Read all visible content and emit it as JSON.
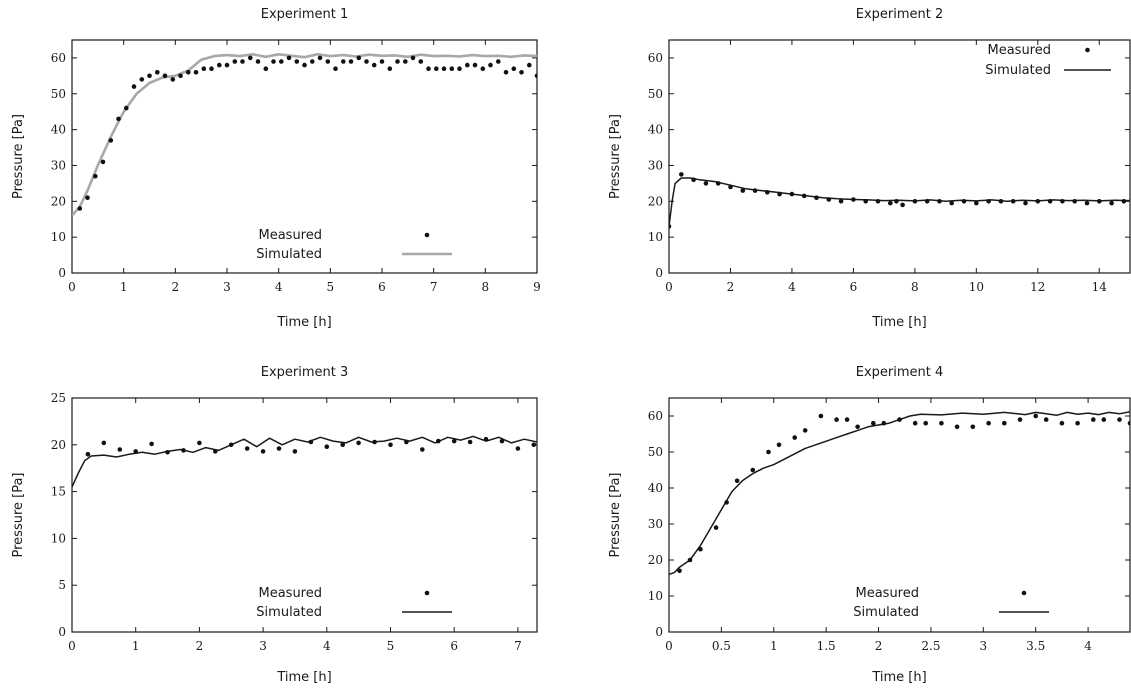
{
  "chart_data": [
    {
      "type": "scatter",
      "title": "Experiment 1",
      "xlabel": "Time [h]",
      "ylabel": "Pressure [Pa]",
      "xlim": [
        0,
        9
      ],
      "ylim": [
        0,
        65
      ],
      "xticks": [
        "0",
        "1",
        "2",
        "3",
        "4",
        "5",
        "6",
        "7",
        "8",
        "9"
      ],
      "yticks": [
        "0",
        "10",
        "20",
        "30",
        "40",
        "50",
        "60"
      ],
      "legend_position": "bottom-center",
      "simulated_color": "#a8a8a8",
      "series": [
        {
          "name": "Measured",
          "mode": "markers",
          "x": [
            0.15,
            0.3,
            0.45,
            0.6,
            0.75,
            0.9,
            1.05,
            1.2,
            1.35,
            1.5,
            1.65,
            1.8,
            1.95,
            2.1,
            2.25,
            2.4,
            2.55,
            2.7,
            2.85,
            3.0,
            3.15,
            3.3,
            3.45,
            3.6,
            3.75,
            3.9,
            4.05,
            4.2,
            4.35,
            4.5,
            4.65,
            4.8,
            4.95,
            5.1,
            5.25,
            5.4,
            5.55,
            5.7,
            5.85,
            6.0,
            6.15,
            6.3,
            6.45,
            6.6,
            6.75,
            6.9,
            7.05,
            7.2,
            7.35,
            7.5,
            7.65,
            7.8,
            7.95,
            8.1,
            8.25,
            8.4,
            8.55,
            8.7,
            8.85,
            9.0
          ],
          "y": [
            18,
            21,
            27,
            31,
            37,
            43,
            46,
            52,
            54,
            55,
            56,
            55,
            54,
            55,
            56,
            56,
            57,
            57,
            58,
            58,
            59,
            59,
            60,
            59,
            57,
            59,
            59,
            60,
            59,
            58,
            59,
            60,
            59,
            57,
            59,
            59,
            60,
            59,
            58,
            59,
            57,
            59,
            59,
            60,
            59,
            57,
            57,
            57,
            57,
            57,
            58,
            58,
            57,
            58,
            59,
            56,
            57,
            56,
            58,
            55
          ]
        },
        {
          "name": "Simulated",
          "mode": "line",
          "x": [
            0,
            0.15,
            0.3,
            0.5,
            0.75,
            1.0,
            1.25,
            1.5,
            1.75,
            2.0,
            2.25,
            2.5,
            2.75,
            3.0,
            3.25,
            3.5,
            3.75,
            4.0,
            4.25,
            4.5,
            4.75,
            5.0,
            5.25,
            5.5,
            5.75,
            6.0,
            6.25,
            6.5,
            6.75,
            7.0,
            7.25,
            7.5,
            7.75,
            8.0,
            8.25,
            8.5,
            8.75,
            9.0
          ],
          "y": [
            16,
            18.5,
            23,
            30,
            38,
            45,
            50,
            53,
            54.5,
            55,
            56.5,
            59.5,
            60.5,
            60.8,
            60.5,
            61,
            60.3,
            61,
            60.6,
            60.2,
            61,
            60.5,
            60.8,
            60.4,
            60.9,
            60.6,
            60.7,
            60.3,
            60.9,
            60.5,
            60.6,
            60.4,
            60.8,
            60.5,
            60.6,
            60.3,
            60.7,
            60.5
          ]
        }
      ]
    },
    {
      "type": "scatter",
      "title": "Experiment 2",
      "xlabel": "Time [h]",
      "ylabel": "Pressure [Pa]",
      "xlim": [
        0,
        15
      ],
      "ylim": [
        0,
        65
      ],
      "xticks": [
        "0",
        "2",
        "4",
        "6",
        "8",
        "10",
        "12",
        "14"
      ],
      "yticks": [
        "0",
        "10",
        "20",
        "30",
        "40",
        "50",
        "60"
      ],
      "legend_position": "top-right",
      "simulated_color": "#1a1a1a",
      "series": [
        {
          "name": "Measured",
          "mode": "markers",
          "x": [
            0,
            0.4,
            0.8,
            1.2,
            1.6,
            2.0,
            2.4,
            2.8,
            3.2,
            3.6,
            4.0,
            4.4,
            4.8,
            5.2,
            5.6,
            6.0,
            6.4,
            6.8,
            7.2,
            7.4,
            7.6,
            8.0,
            8.4,
            8.8,
            9.2,
            9.6,
            10.0,
            10.4,
            10.8,
            11.2,
            11.6,
            12.0,
            12.4,
            12.8,
            13.2,
            13.6,
            14.0,
            14.4,
            14.8
          ],
          "y": [
            13,
            27.5,
            26,
            25,
            25,
            24,
            23,
            23,
            22.5,
            22,
            22,
            21.5,
            21,
            20.5,
            20,
            20.5,
            20,
            20,
            19.5,
            20,
            19,
            20,
            20,
            20,
            19.5,
            20,
            19.5,
            20,
            20,
            20,
            19.5,
            20,
            20,
            20,
            20,
            19.5,
            20,
            19.5,
            20
          ]
        },
        {
          "name": "Simulated",
          "mode": "line",
          "x": [
            0,
            0.1,
            0.2,
            0.4,
            0.7,
            1.0,
            1.5,
            2,
            2.5,
            3,
            3.5,
            4,
            4.5,
            5,
            5.5,
            6,
            6.5,
            7,
            7.5,
            8,
            8.5,
            9,
            9.5,
            10,
            10.5,
            11,
            11.5,
            12,
            12.5,
            13,
            13.5,
            14,
            14.5,
            15
          ],
          "y": [
            13,
            20,
            25,
            26.5,
            26.5,
            26,
            25.5,
            24.5,
            23.5,
            23,
            22.5,
            22,
            21.5,
            21,
            20.7,
            20.5,
            20.4,
            20.2,
            20.3,
            20.1,
            20.4,
            20,
            20.3,
            20.1,
            20.4,
            20,
            20.3,
            20.1,
            20.4,
            20.2,
            20.3,
            20.1,
            20.3,
            20.2
          ]
        }
      ]
    },
    {
      "type": "scatter",
      "title": "Experiment 3",
      "xlabel": "Time [h]",
      "ylabel": "Pressure [Pa]",
      "xlim": [
        0,
        7.3
      ],
      "ylim": [
        0,
        25
      ],
      "xticks": [
        "0",
        "1",
        "2",
        "3",
        "4",
        "5",
        "6",
        "7"
      ],
      "yticks": [
        "0",
        "5",
        "10",
        "15",
        "20",
        "25"
      ],
      "legend_position": "bottom-center",
      "simulated_color": "#1a1a1a",
      "series": [
        {
          "name": "Measured",
          "mode": "markers",
          "x": [
            0.25,
            0.5,
            0.75,
            1.0,
            1.25,
            1.5,
            1.75,
            2.0,
            2.25,
            2.5,
            2.75,
            3.0,
            3.25,
            3.5,
            3.75,
            4.0,
            4.25,
            4.5,
            4.75,
            5.0,
            5.25,
            5.5,
            5.75,
            6.0,
            6.25,
            6.5,
            6.75,
            7.0,
            7.25
          ],
          "y": [
            19,
            20.2,
            19.5,
            19.3,
            20.1,
            19.2,
            19.4,
            20.2,
            19.3,
            20,
            19.6,
            19.3,
            19.6,
            19.3,
            20.3,
            19.8,
            20,
            20.2,
            20.3,
            20,
            20.3,
            19.5,
            20.4,
            20.4,
            20.3,
            20.6,
            20.4,
            19.6,
            20
          ]
        },
        {
          "name": "Simulated",
          "mode": "line",
          "x": [
            0,
            0.1,
            0.2,
            0.3,
            0.5,
            0.7,
            0.9,
            1.1,
            1.3,
            1.5,
            1.7,
            1.9,
            2.1,
            2.3,
            2.5,
            2.7,
            2.9,
            3.1,
            3.3,
            3.5,
            3.7,
            3.9,
            4.1,
            4.3,
            4.5,
            4.7,
            4.9,
            5.1,
            5.3,
            5.5,
            5.7,
            5.9,
            6.1,
            6.3,
            6.5,
            6.7,
            6.9,
            7.1,
            7.3
          ],
          "y": [
            15.5,
            17,
            18.3,
            18.8,
            18.9,
            18.7,
            19,
            19.2,
            19,
            19.3,
            19.5,
            19.2,
            19.7,
            19.4,
            20,
            20.6,
            19.8,
            20.7,
            20,
            20.6,
            20.3,
            20.8,
            20.4,
            20.2,
            20.8,
            20.3,
            20.4,
            20.7,
            20.4,
            20.8,
            20.2,
            20.8,
            20.5,
            20.9,
            20.4,
            20.8,
            20.2,
            20.6,
            20.3
          ]
        }
      ]
    },
    {
      "type": "scatter",
      "title": "Experiment 4",
      "xlabel": "Time [h]",
      "ylabel": "Pressure [Pa]",
      "xlim": [
        0,
        4.4
      ],
      "ylim": [
        0,
        65
      ],
      "xticks": [
        "0",
        "0.5",
        "1",
        "1.5",
        "2",
        "2.5",
        "3",
        "3.5",
        "4"
      ],
      "yticks": [
        "0",
        "10",
        "20",
        "30",
        "40",
        "50",
        "60"
      ],
      "legend_position": "bottom-center",
      "simulated_color": "#1a1a1a",
      "series": [
        {
          "name": "Measured",
          "mode": "markers",
          "x": [
            0.1,
            0.2,
            0.3,
            0.45,
            0.55,
            0.65,
            0.8,
            0.95,
            1.05,
            1.2,
            1.3,
            1.45,
            1.6,
            1.7,
            1.8,
            1.95,
            2.05,
            2.2,
            2.35,
            2.45,
            2.6,
            2.75,
            2.9,
            3.05,
            3.2,
            3.35,
            3.5,
            3.6,
            3.75,
            3.9,
            4.05,
            4.15,
            4.3,
            4.4
          ],
          "y": [
            17,
            20,
            23,
            29,
            36,
            42,
            45,
            50,
            52,
            54,
            56,
            60,
            59,
            59,
            57,
            58,
            58,
            59,
            58,
            58,
            58,
            57,
            57,
            58,
            58,
            59,
            60,
            59,
            58,
            58,
            59,
            59,
            59,
            58
          ]
        },
        {
          "name": "Simulated",
          "mode": "line",
          "x": [
            0,
            0.05,
            0.1,
            0.2,
            0.3,
            0.4,
            0.5,
            0.6,
            0.7,
            0.8,
            0.9,
            1.0,
            1.1,
            1.2,
            1.3,
            1.4,
            1.5,
            1.6,
            1.7,
            1.8,
            1.9,
            2.0,
            2.1,
            2.2,
            2.3,
            2.4,
            2.6,
            2.8,
            3.0,
            3.2,
            3.4,
            3.5,
            3.6,
            3.7,
            3.8,
            3.9,
            4.0,
            4.1,
            4.2,
            4.3,
            4.4
          ],
          "y": [
            16,
            16.5,
            18,
            20,
            24,
            29,
            34,
            39,
            42,
            44,
            45.5,
            46.5,
            48,
            49.5,
            51,
            52,
            53,
            54,
            55,
            56,
            57,
            57.5,
            58,
            59,
            60,
            60.5,
            60.3,
            60.8,
            60.5,
            61,
            60.4,
            61,
            60.6,
            60.2,
            61,
            60.5,
            60.8,
            60.4,
            61,
            60.6,
            61.2
          ]
        }
      ]
    }
  ]
}
